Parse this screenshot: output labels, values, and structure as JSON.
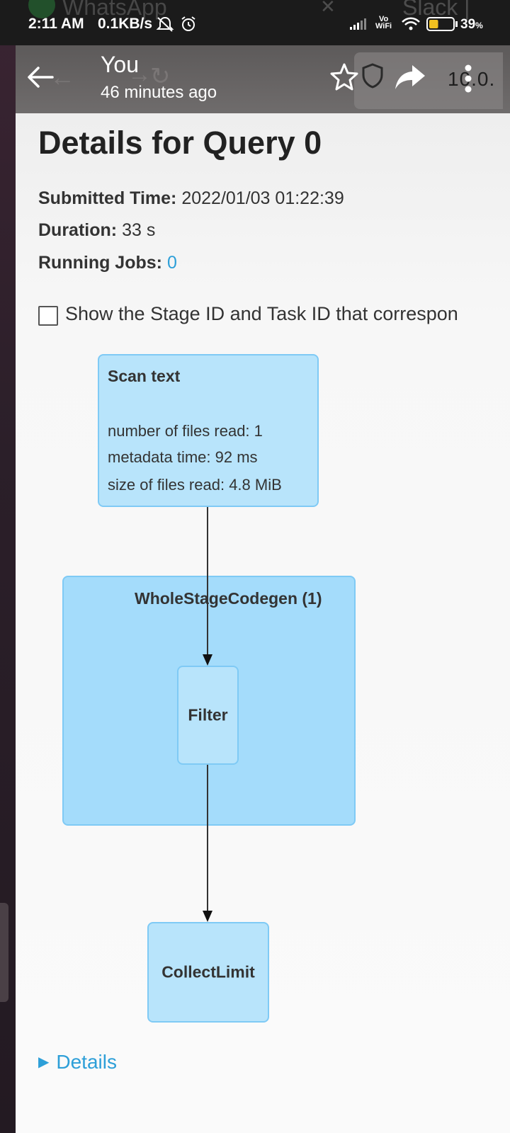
{
  "status_bar": {
    "time": "2:11 AM",
    "speed": "0.1KB/s",
    "vowifi_top": "Vo",
    "vowifi_bottom": "WiFi",
    "battery": "39",
    "battery_unit": "%",
    "battery_level": 0.39
  },
  "background_browser": {
    "tab_1": "WhatsApp",
    "tab_2": "Slack | Sea",
    "url_fragment": "10.0."
  },
  "toolbar": {
    "title": "You",
    "subtitle": "46 minutes ago"
  },
  "page": {
    "title": "Details for Query 0",
    "submitted_label": "Submitted Time:",
    "submitted_value": "2022/01/03 01:22:39",
    "duration_label": "Duration:",
    "duration_value": "33 s",
    "jobs_label": "Running Jobs:",
    "jobs_value": "0",
    "checkbox_label": "Show the Stage ID and Task ID that correspon",
    "details_label": "Details"
  },
  "dag": {
    "scan_node": {
      "title": "Scan text",
      "metrics": [
        "number of files read: 1",
        "metadata time: 92 ms",
        "size of files read: 4.8 MiB"
      ]
    },
    "cluster_label": "WholeStageCodegen (1)",
    "filter_label": "Filter",
    "collect_label": "CollectLimit"
  },
  "colors": {
    "node_fill": "#b8e4fb",
    "cluster_fill": "#a4dcfb",
    "node_border": "#7fcaf5",
    "link": "#2d9fd8"
  }
}
